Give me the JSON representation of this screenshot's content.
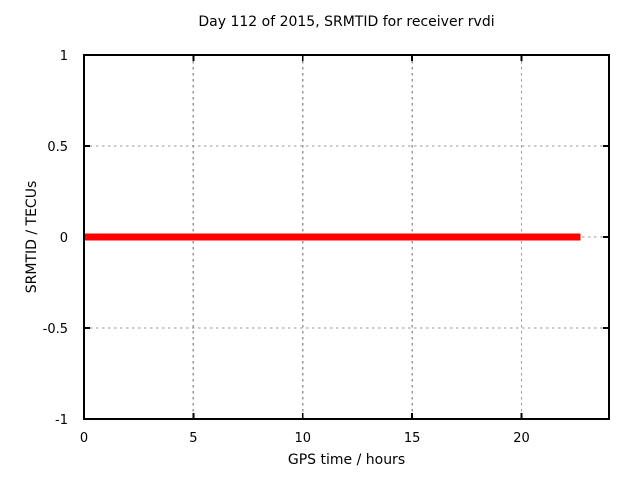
{
  "page": {
    "background": "#ffffff",
    "text_color": "#000000"
  },
  "chart_data": {
    "type": "line",
    "title": "Day 112 of 2015, SRMTID for receiver rvdi",
    "xlabel": "GPS time / hours",
    "ylabel": "SRMTID / TECUs",
    "xlim": [
      0,
      24
    ],
    "ylim": [
      -1,
      1
    ],
    "xticks": [
      0,
      5,
      10,
      15,
      20
    ],
    "yticks": [
      -1,
      -0.5,
      0,
      0.5,
      1
    ],
    "grid": true,
    "grid_color": "#9a9a9a",
    "axis_color": "#000000",
    "legend_position": "none",
    "series": [
      {
        "name": "SRMTID",
        "color": "#ff0000",
        "linewidth": 7,
        "x": [
          0,
          22.7
        ],
        "y": [
          0,
          0
        ]
      }
    ]
  }
}
